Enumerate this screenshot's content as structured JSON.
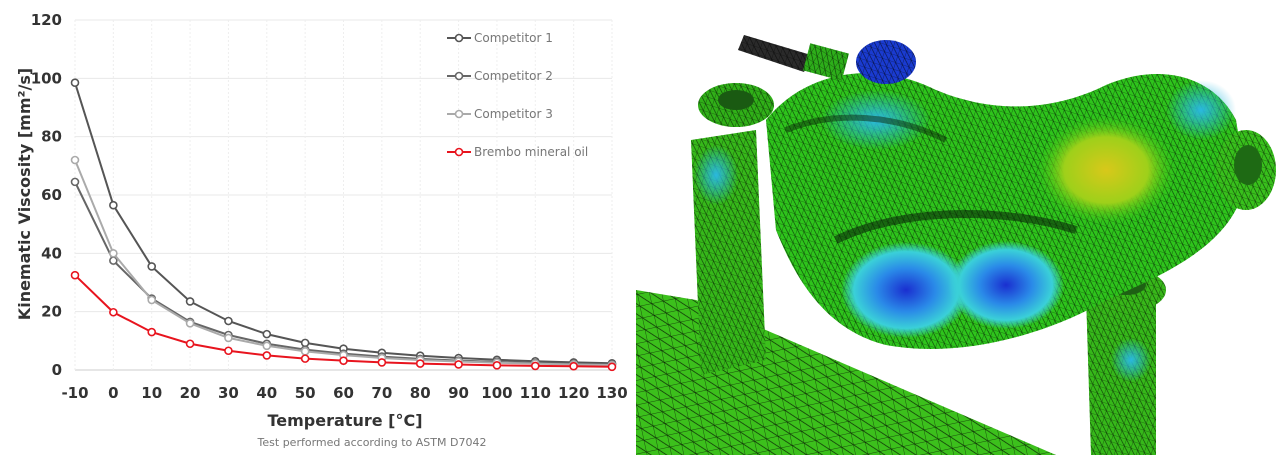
{
  "chart_data": {
    "type": "line",
    "xlabel": "Temperature [°C]",
    "ylabel": "Kinematic Viscosity  [mm²/s]",
    "footnote": "Test performed according to ASTM D7042",
    "x": [
      -10,
      0,
      10,
      20,
      30,
      40,
      50,
      60,
      70,
      80,
      90,
      100,
      110,
      120,
      130
    ],
    "x_ticks": [
      "-10",
      "0",
      "10",
      "20",
      "30",
      "40",
      "50",
      "60",
      "70",
      "80",
      "90",
      "100",
      "110",
      "120",
      "130"
    ],
    "y_ticks": [
      "0",
      "20",
      "40",
      "60",
      "80",
      "100",
      "120"
    ],
    "ylim": [
      0,
      120
    ],
    "xlim": [
      -10,
      130
    ],
    "grid": true,
    "legend_position": "top-right",
    "series": [
      {
        "name": "Competitor 1",
        "color": "#555555",
        "values": [
          98.5,
          56.5,
          35.5,
          23.5,
          16.8,
          12.3,
          9.3,
          7.3,
          5.9,
          4.9,
          4.1,
          3.5,
          3.0,
          2.6,
          2.3
        ]
      },
      {
        "name": "Competitor 2",
        "color": "#666666",
        "values": [
          64.5,
          37.5,
          24.5,
          16.5,
          12.0,
          9.0,
          7.0,
          5.6,
          4.6,
          3.8,
          3.2,
          2.8,
          2.4,
          2.1,
          1.9
        ]
      },
      {
        "name": "Competitor 3",
        "color": "#aaaaaa",
        "values": [
          72.0,
          40.0,
          24.0,
          16.0,
          11.0,
          8.3,
          6.4,
          5.1,
          4.1,
          3.4,
          2.9,
          2.5,
          2.2,
          1.9,
          1.7
        ]
      },
      {
        "name": "Brembo mineral oil",
        "color": "#e8141e",
        "values": [
          32.5,
          19.8,
          13.0,
          9.0,
          6.6,
          5.0,
          3.9,
          3.2,
          2.6,
          2.2,
          1.9,
          1.6,
          1.4,
          1.3,
          1.1
        ]
      }
    ]
  },
  "fea_image": {
    "title": ""
  }
}
